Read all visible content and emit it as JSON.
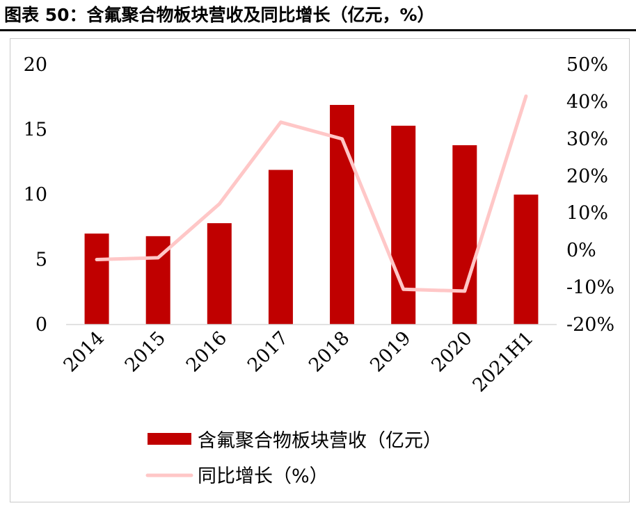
{
  "header": {
    "title": "图表 50：含氟聚合物板块营收及同比增长（亿元，%）"
  },
  "chart_data": {
    "type": "bar",
    "categories": [
      "2014",
      "2015",
      "2016",
      "2017",
      "2018",
      "2019",
      "2020",
      "2021H1"
    ],
    "series": [
      {
        "name": "含氟聚合物板块营收（亿元）",
        "type": "bar",
        "axis": "left",
        "values": [
          7.0,
          6.8,
          7.8,
          11.9,
          16.9,
          15.3,
          13.8,
          10.0
        ]
      },
      {
        "name": "同比增长（%）",
        "type": "line",
        "axis": "right",
        "values": [
          -2.5,
          -2.0,
          12.5,
          34.5,
          30.0,
          -10.5,
          -11.0,
          41.5
        ]
      }
    ],
    "y_left": {
      "min": 0,
      "max": 20,
      "ticks": [
        "0",
        "5",
        "10",
        "15",
        "20"
      ]
    },
    "y_right": {
      "min": -20,
      "max": 50,
      "ticks": [
        "-20%",
        "-10%",
        "0%",
        "10%",
        "20%",
        "30%",
        "40%",
        "50%"
      ]
    },
    "grid": false,
    "legend_position": "bottom",
    "colors": {
      "bar": "#c00000",
      "line": "#ffc7c7",
      "axis": "#d9d9d9"
    }
  }
}
